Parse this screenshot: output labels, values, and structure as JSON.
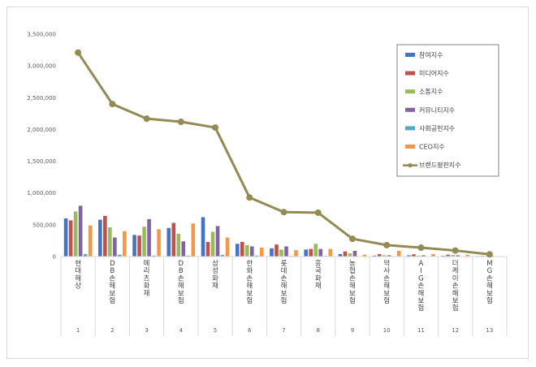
{
  "chart_data": {
    "type": "bar",
    "title": "",
    "xlabel": "",
    "ylabel": "",
    "ylim": [
      0,
      3500000
    ],
    "yticks": [
      0,
      500000,
      1000000,
      1500000,
      2000000,
      2500000,
      3000000,
      3500000
    ],
    "ytick_labels": [
      "0",
      "500,000",
      "1,000,000",
      "1,500,000",
      "2,000,000",
      "2,500,000",
      "3,000,000",
      "3,500,000"
    ],
    "grid": false,
    "legend_position": "top-right",
    "categories": [
      "현대해상",
      "DB손해보험",
      "메리츠화재",
      "DB손해보험",
      "삼성화재",
      "한화손해보험",
      "롯데손해보험",
      "흥국화재",
      "농협손해보험",
      "악사손해보험",
      "AIG손해보험",
      "더케이손해보험",
      "MG손해보험"
    ],
    "row_numbers": [
      "1",
      "2",
      "3",
      "4",
      "5",
      "6",
      "7",
      "8",
      "9",
      "10",
      "11",
      "12",
      "13"
    ],
    "series": [
      {
        "name": "참여지수",
        "color": "#4472c4",
        "values": [
          600000,
          580000,
          340000,
          450000,
          620000,
          200000,
          130000,
          110000,
          40000,
          15000,
          20000,
          12000,
          8000
        ]
      },
      {
        "name": "미디어지수",
        "color": "#c0504d",
        "values": [
          570000,
          640000,
          330000,
          530000,
          230000,
          230000,
          190000,
          120000,
          80000,
          40000,
          35000,
          30000,
          10000
        ]
      },
      {
        "name": "소통지수",
        "color": "#9bbb59",
        "values": [
          710000,
          460000,
          470000,
          360000,
          390000,
          180000,
          110000,
          200000,
          50000,
          20000,
          15000,
          25000,
          10000
        ]
      },
      {
        "name": "커뮤니티지수",
        "color": "#8064a2",
        "values": [
          800000,
          300000,
          590000,
          240000,
          480000,
          160000,
          160000,
          120000,
          90000,
          20000,
          20000,
          20000,
          10000
        ]
      },
      {
        "name": "사회공헌지수",
        "color": "#4bacc6",
        "values": [
          40000,
          30000,
          15000,
          15000,
          25000,
          15000,
          10000,
          10000,
          5000,
          5000,
          5000,
          5000,
          3000
        ]
      },
      {
        "name": "CEO지수",
        "color": "#f79646",
        "values": [
          490000,
          400000,
          430000,
          520000,
          300000,
          140000,
          100000,
          120000,
          30000,
          90000,
          40000,
          25000,
          5000
        ]
      }
    ],
    "line_series": {
      "name": "브랜드평판지수",
      "color": "#948a54",
      "values": [
        3210000,
        2400000,
        2170000,
        2120000,
        2030000,
        930000,
        700000,
        690000,
        280000,
        180000,
        140000,
        95000,
        35000
      ]
    }
  }
}
